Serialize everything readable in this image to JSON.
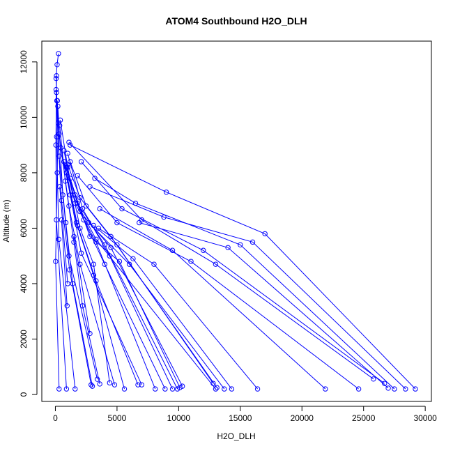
{
  "chart_data": {
    "type": "line",
    "title": "ATOM4 Southbound H2O_DLH",
    "xlabel": "H2O_DLH",
    "ylabel": "Altitude (m)",
    "xlim": [
      -1100,
      30500
    ],
    "ylim": [
      -250,
      12750
    ],
    "x_ticks": [
      0,
      5000,
      10000,
      15000,
      20000,
      25000,
      30000
    ],
    "y_ticks": [
      0,
      2000,
      4000,
      6000,
      8000,
      10000,
      12000
    ],
    "grid": false,
    "legend": "none",
    "series_color": "#0000ff",
    "series": [
      {
        "x": [
          300,
          20,
          150,
          230,
          120,
          60,
          140,
          250
        ],
        "y": [
          200,
          4800,
          8000,
          9800,
          10600,
          11400,
          11900,
          12300
        ]
      },
      {
        "x": [
          900,
          80,
          40,
          90
        ],
        "y": [
          200,
          6300,
          9000,
          11500
        ]
      },
      {
        "x": [
          1600,
          280,
          100,
          60
        ],
        "y": [
          200,
          5600,
          9300,
          11000
        ]
      },
      {
        "x": [
          2900,
          1150,
          500,
          200,
          90
        ],
        "y": [
          350,
          4500,
          7000,
          9300,
          10900
        ]
      },
      {
        "x": [
          3000,
          1400,
          850,
          300,
          160
        ],
        "y": [
          300,
          4000,
          6200,
          8600,
          10600
        ]
      },
      {
        "x": [
          3400,
          1100,
          600,
          200
        ],
        "y": [
          550,
          5000,
          7200,
          10400
        ]
      },
      {
        "x": [
          3600,
          2200,
          1500,
          800,
          350
        ],
        "y": [
          380,
          3200,
          5500,
          7700,
          9700
        ]
      },
      {
        "x": [
          4400,
          3100,
          2000,
          1000,
          400
        ],
        "y": [
          420,
          4700,
          6000,
          8200,
          9900
        ]
      },
      {
        "x": [
          4800,
          2000,
          1100,
          300
        ],
        "y": [
          350,
          4700,
          6800,
          9400
        ]
      },
      {
        "x": [
          5600,
          3100,
          1700,
          700
        ],
        "y": [
          200,
          4300,
          6200,
          8400
        ]
      },
      {
        "x": [
          6700,
          3300,
          1800,
          900
        ],
        "y": [
          350,
          4100,
          6100,
          8000
        ]
      },
      {
        "x": [
          7000,
          2100,
          1200,
          450
        ],
        "y": [
          350,
          5100,
          7200,
          8900
        ]
      },
      {
        "x": [
          8100,
          3300,
          1600,
          800
        ],
        "y": [
          200,
          5500,
          6900,
          8300
        ]
      },
      {
        "x": [
          8900,
          4000,
          2300,
          1200
        ],
        "y": [
          200,
          4700,
          6300,
          7800
        ]
      },
      {
        "x": [
          9500,
          4400,
          2200,
          1000
        ],
        "y": [
          200,
          5000,
          6700,
          8700
        ]
      },
      {
        "x": [
          10100,
          5200,
          2800,
          1600
        ],
        "y": [
          250,
          4800,
          5700,
          7200
        ]
      },
      {
        "x": [
          10300,
          4500,
          2000,
          900
        ],
        "y": [
          300,
          5300,
          6600,
          8200
        ]
      },
      {
        "x": [
          12800,
          5000,
          2500,
          1200
        ],
        "y": [
          400,
          5400,
          6800,
          8400
        ]
      },
      {
        "x": [
          13000,
          3300,
          1400,
          700
        ],
        "y": [
          200,
          5600,
          7200,
          8800
        ]
      },
      {
        "x": [
          13100,
          4500,
          2000,
          1000
        ],
        "y": [
          250,
          5700,
          7100,
          8300
        ]
      },
      {
        "x": [
          13700,
          6000,
          2700
        ],
        "y": [
          200,
          4700,
          6200
        ]
      },
      {
        "x": [
          14300,
          6300,
          3100
        ],
        "y": [
          200,
          4900,
          6100
        ]
      },
      {
        "x": [
          16400,
          8000,
          3500
        ],
        "y": [
          200,
          4700,
          6000
        ]
      },
      {
        "x": [
          21900,
          9500,
          3600
        ],
        "y": [
          200,
          5200,
          6700
        ]
      },
      {
        "x": [
          24600,
          11000,
          5000,
          1800
        ],
        "y": [
          200,
          4800,
          6200,
          7900
        ]
      },
      {
        "x": [
          25800,
          13000,
          7000,
          1100
        ],
        "y": [
          560,
          4700,
          6300,
          9100
        ]
      },
      {
        "x": [
          26700,
          12000,
          5400,
          2100
        ],
        "y": [
          400,
          5200,
          6700,
          8400
        ]
      },
      {
        "x": [
          27000,
          14000,
          6800
        ],
        "y": [
          230,
          5300,
          6200
        ]
      },
      {
        "x": [
          27500,
          15000,
          6500,
          3200
        ],
        "y": [
          200,
          5400,
          6900,
          7800
        ]
      },
      {
        "x": [
          28400,
          16000,
          8800,
          2800
        ],
        "y": [
          200,
          5500,
          6400,
          7500
        ]
      },
      {
        "x": [
          29200,
          17000,
          9000,
          1200
        ],
        "y": [
          200,
          5800,
          7300,
          9000
        ]
      },
      {
        "x": [
          9900,
          4000,
          1800
        ],
        "y": [
          200,
          5400,
          6900
        ]
      },
      {
        "x": [
          2800,
          1500
        ],
        "y": [
          2200,
          5700
        ]
      },
      {
        "x": [
          950,
          500
        ],
        "y": [
          3200,
          6300
        ]
      },
      {
        "x": [
          1000,
          350
        ],
        "y": [
          4000,
          7500
        ]
      }
    ]
  }
}
